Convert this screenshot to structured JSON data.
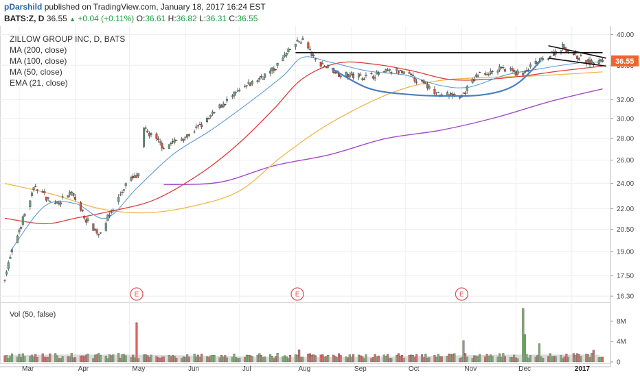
{
  "header": {
    "author": "pDarshild",
    "published_text": "published on TradingView.com, January 18, 2017 16:24 EST",
    "symbol": "BATS:Z, D",
    "last": "36.55",
    "change": "+0.04 (+0.11%)",
    "open_label": "O:",
    "open": "36.61",
    "high_label": "H:",
    "high": "36.82",
    "low_label": "L:",
    "low": "36.31",
    "close_label": "C:",
    "close": "36.55"
  },
  "legend": {
    "title": "ZILLOW GROUP INC, D, BATS",
    "items": [
      "MA (200, close)",
      "MA (100, close)",
      "MA (50, close)",
      "EMA (21, close)"
    ]
  },
  "volume_label": "Vol (50, false)",
  "colors": {
    "up": "#6ba583",
    "down": "#d75442",
    "ema21": "#5b9bd5",
    "ma50": "#e03a3a",
    "ma100": "#f0b54b",
    "ma200": "#a24ac9",
    "trend": "#111111",
    "arc": "#4a7fc1",
    "earnings": "#e05858",
    "price_tag": "#f0642f",
    "vol_up": "#6ba55a",
    "vol_down": "#d65454"
  },
  "chart_data": {
    "type": "candlestick",
    "title": "ZILLOW GROUP INC, D, BATS",
    "y_scale": "log",
    "ylim": [
      16.0,
      41.0
    ],
    "y_ticks": [
      "40.00",
      "36.00",
      "32.00",
      "30.00",
      "28.00",
      "26.00",
      "24.00",
      "22.00",
      "20.50",
      "19.00",
      "17.50",
      "16.30"
    ],
    "x_ticks": [
      "Mar",
      "Apr",
      "May",
      "Jun",
      "Jul",
      "Aug",
      "Sep",
      "Oct",
      "Nov",
      "Dec",
      "2017"
    ],
    "last_price_label": "36.55",
    "earnings_markers": [
      "E",
      "E",
      "E"
    ],
    "volume_ticks": [
      "8M",
      "4M",
      "0"
    ],
    "anchors": [
      [
        "2016-02-22",
        17.4
      ],
      [
        "2016-03-01",
        20.5
      ],
      [
        "2016-03-10",
        23.8
      ],
      [
        "2016-03-20",
        22.3
      ],
      [
        "2016-03-30",
        23.2
      ],
      [
        "2016-04-07",
        21.2
      ],
      [
        "2016-04-14",
        20.2
      ],
      [
        "2016-04-22",
        22.0
      ],
      [
        "2016-04-30",
        24.2
      ],
      [
        "2016-05-06",
        24.6
      ],
      [
        "2016-05-08",
        29.0
      ],
      [
        "2016-05-20",
        27.2
      ],
      [
        "2016-06-02",
        28.3
      ],
      [
        "2016-06-12",
        29.6
      ],
      [
        "2016-06-22",
        31.6
      ],
      [
        "2016-07-05",
        33.5
      ],
      [
        "2016-07-20",
        35.5
      ],
      [
        "2016-08-01",
        38.8
      ],
      [
        "2016-08-05",
        39.3
      ],
      [
        "2016-08-12",
        36.6
      ],
      [
        "2016-08-26",
        34.9
      ],
      [
        "2016-09-10",
        34.6
      ],
      [
        "2016-09-25",
        35.4
      ],
      [
        "2016-10-05",
        34.5
      ],
      [
        "2016-10-20",
        32.6
      ],
      [
        "2016-11-01",
        32.4
      ],
      [
        "2016-11-10",
        34.9
      ],
      [
        "2016-11-25",
        35.6
      ],
      [
        "2016-12-05",
        34.8
      ],
      [
        "2016-12-10",
        36.0
      ],
      [
        "2016-12-17",
        36.8
      ],
      [
        "2016-12-27",
        38.4
      ],
      [
        "2017-01-05",
        37.0
      ],
      [
        "2017-01-12",
        36.2
      ],
      [
        "2017-01-18",
        36.55
      ]
    ],
    "ema21_pts": [
      [
        "2016-02-25",
        19.0
      ],
      [
        "2016-03-15",
        22.2
      ],
      [
        "2016-04-01",
        22.4
      ],
      [
        "2016-04-18",
        21.3
      ],
      [
        "2016-05-05",
        23.6
      ],
      [
        "2016-05-25",
        26.5
      ],
      [
        "2016-06-15",
        28.8
      ],
      [
        "2016-07-05",
        31.5
      ],
      [
        "2016-07-25",
        34.7
      ],
      [
        "2016-08-05",
        37.0
      ],
      [
        "2016-08-20",
        36.4
      ],
      [
        "2016-09-10",
        35.3
      ],
      [
        "2016-10-01",
        34.8
      ],
      [
        "2016-10-20",
        33.6
      ],
      [
        "2016-11-05",
        33.4
      ],
      [
        "2016-11-25",
        34.8
      ],
      [
        "2016-12-15",
        35.6
      ],
      [
        "2017-01-05",
        36.3
      ],
      [
        "2017-01-18",
        36.4
      ]
    ],
    "ma50_pts": [
      [
        "2016-02-22",
        21.3
      ],
      [
        "2016-03-15",
        20.9
      ],
      [
        "2016-04-01",
        21.3
      ],
      [
        "2016-04-20",
        21.8
      ],
      [
        "2016-05-15",
        22.7
      ],
      [
        "2016-06-10",
        24.9
      ],
      [
        "2016-07-01",
        27.6
      ],
      [
        "2016-07-20",
        31.0
      ],
      [
        "2016-08-05",
        34.4
      ],
      [
        "2016-08-25",
        36.3
      ],
      [
        "2016-09-15",
        36.1
      ],
      [
        "2016-10-05",
        35.3
      ],
      [
        "2016-10-25",
        34.3
      ],
      [
        "2016-11-15",
        34.3
      ],
      [
        "2016-12-05",
        34.7
      ],
      [
        "2016-12-25",
        35.3
      ],
      [
        "2017-01-18",
        35.9
      ]
    ],
    "ma100_pts": [
      [
        "2016-02-22",
        24.0
      ],
      [
        "2016-03-20",
        23.1
      ],
      [
        "2016-04-15",
        22.0
      ],
      [
        "2016-05-10",
        21.7
      ],
      [
        "2016-06-05",
        22.2
      ],
      [
        "2016-07-01",
        23.4
      ],
      [
        "2016-07-25",
        26.4
      ],
      [
        "2016-08-20",
        29.5
      ],
      [
        "2016-09-20",
        32.5
      ],
      [
        "2016-10-15",
        34.0
      ],
      [
        "2016-11-10",
        34.5
      ],
      [
        "2016-12-10",
        34.7
      ],
      [
        "2017-01-18",
        35.2
      ]
    ],
    "ma200_pts": [
      [
        "2016-05-20",
        23.9
      ],
      [
        "2016-06-20",
        24.1
      ],
      [
        "2016-07-20",
        25.5
      ],
      [
        "2016-08-20",
        26.5
      ],
      [
        "2016-09-20",
        28.0
      ],
      [
        "2016-10-20",
        28.8
      ],
      [
        "2016-11-20",
        30.1
      ],
      [
        "2016-12-20",
        31.8
      ],
      [
        "2017-01-18",
        33.2
      ]
    ],
    "trendlines": [
      [
        [
          "2016-08-01",
          37.6
        ],
        [
          "2017-01-18",
          37.6
        ]
      ],
      [
        [
          "2016-12-19",
          38.5
        ],
        [
          "2017-01-20",
          36.9
        ]
      ],
      [
        [
          "2016-12-19",
          36.9
        ],
        [
          "2017-01-20",
          35.9
        ]
      ]
    ],
    "cup_pts": [
      [
        "2016-08-21",
        35.6
      ],
      [
        "2016-09-10",
        33.3
      ],
      [
        "2016-10-01",
        32.6
      ],
      [
        "2016-10-25",
        32.4
      ],
      [
        "2016-11-15",
        32.6
      ],
      [
        "2016-12-01",
        33.7
      ],
      [
        "2016-12-15",
        36.6
      ]
    ],
    "earnings_dates": [
      "2016-05-05",
      "2016-08-02",
      "2016-11-01"
    ],
    "volume_spikes": [
      [
        "2016-05-05",
        7.7,
        "down"
      ],
      [
        "2016-08-03",
        2.4,
        "down"
      ],
      [
        "2016-11-02",
        4.2,
        "up"
      ],
      [
        "2016-12-05",
        10.5,
        "up"
      ],
      [
        "2016-12-06",
        5.4,
        "up"
      ],
      [
        "2016-12-14",
        3.6,
        "up"
      ],
      [
        "2017-01-13",
        2.3,
        "down"
      ]
    ]
  }
}
